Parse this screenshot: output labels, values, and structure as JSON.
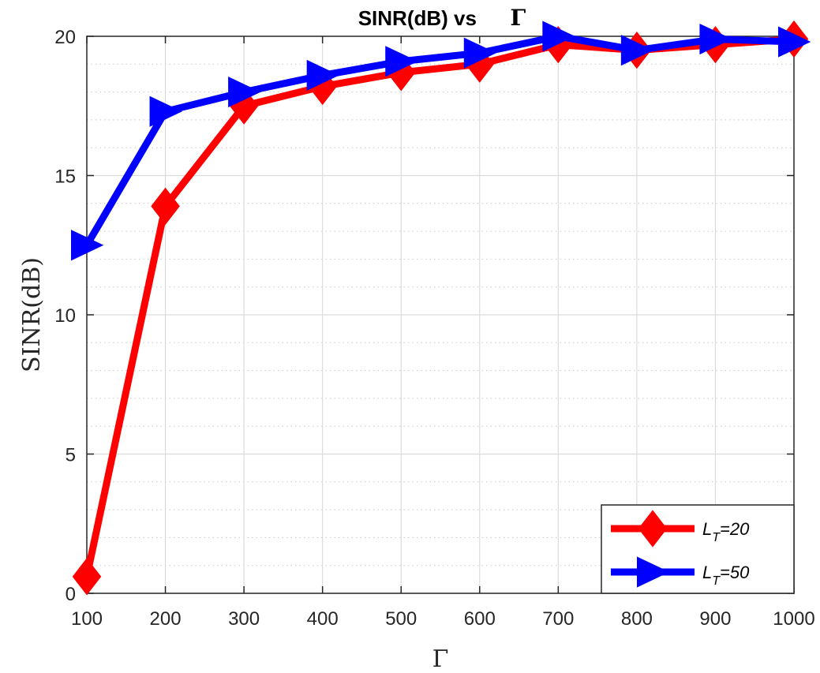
{
  "chart_data": {
    "type": "line",
    "title": "SINR(dB) vs",
    "title_symbol": "Γ",
    "xlabel": "Γ",
    "ylabel": "SINR(dB)",
    "x": [
      100,
      200,
      300,
      400,
      500,
      600,
      700,
      800,
      900,
      1000
    ],
    "xlim": [
      100,
      1000
    ],
    "ylim": [
      0,
      20
    ],
    "xticks": [
      100,
      200,
      300,
      400,
      500,
      600,
      700,
      800,
      900,
      1000
    ],
    "yticks": [
      0,
      5,
      10,
      15,
      20
    ],
    "grid": true,
    "minor_grid": true,
    "legend_position": "bottom-right",
    "series": [
      {
        "name": "L_T=20",
        "legend_main": "L",
        "legend_sub": "T",
        "legend_tail": "=20",
        "color": "#ff0000",
        "marker": "diamond",
        "values": [
          0.6,
          13.9,
          17.5,
          18.2,
          18.7,
          19.0,
          19.7,
          19.5,
          19.7,
          19.9
        ]
      },
      {
        "name": "L_T=50",
        "legend_main": "L",
        "legend_sub": "T",
        "legend_tail": "=50",
        "color": "#0000ff",
        "marker": "triangle-right",
        "values": [
          12.5,
          17.3,
          18.0,
          18.6,
          19.1,
          19.4,
          20.0,
          19.5,
          19.9,
          19.8
        ]
      }
    ]
  }
}
